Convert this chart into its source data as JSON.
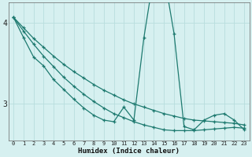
{
  "xlabel": "Humidex (Indice chaleur)",
  "bg_color": "#d6f0f0",
  "line_color": "#1e7a70",
  "grid_color": "#b8dede",
  "xlim": [
    -0.5,
    23.5
  ],
  "ylim": [
    2.55,
    4.25
  ],
  "yticks": [
    3,
    4
  ],
  "xticks": [
    0,
    1,
    2,
    3,
    4,
    5,
    6,
    7,
    8,
    9,
    10,
    11,
    12,
    13,
    14,
    15,
    16,
    17,
    18,
    19,
    20,
    21,
    22,
    23
  ],
  "series": [
    {
      "x": [
        0,
        1,
        2,
        3,
        4,
        5,
        6,
        7,
        8,
        9,
        10,
        11,
        12,
        13,
        14,
        15,
        16,
        17,
        18,
        19,
        20,
        21,
        22,
        23
      ],
      "y": [
        4.07,
        3.94,
        3.81,
        3.7,
        3.59,
        3.49,
        3.4,
        3.32,
        3.24,
        3.17,
        3.11,
        3.05,
        3.0,
        2.96,
        2.92,
        2.88,
        2.85,
        2.82,
        2.8,
        2.79,
        2.78,
        2.77,
        2.76,
        2.74
      ]
    },
    {
      "x": [
        0,
        1,
        2,
        3,
        4,
        5,
        6,
        7,
        8,
        9,
        10,
        11,
        12,
        13,
        14,
        15,
        16,
        17,
        18,
        19,
        20,
        21,
        22,
        23
      ],
      "y": [
        4.07,
        3.9,
        3.74,
        3.59,
        3.46,
        3.33,
        3.22,
        3.12,
        3.03,
        2.95,
        2.88,
        2.83,
        2.78,
        2.74,
        2.71,
        2.68,
        2.67,
        2.67,
        2.67,
        2.68,
        2.69,
        2.7,
        2.71,
        2.7
      ]
    },
    {
      "x": [
        0,
        1,
        2,
        3,
        4,
        5,
        6,
        7,
        8,
        9,
        10,
        11,
        12,
        13,
        14,
        15,
        16,
        17,
        18,
        19,
        20,
        21,
        22,
        23
      ],
      "y": [
        4.07,
        3.82,
        3.58,
        3.47,
        3.3,
        3.18,
        3.06,
        2.95,
        2.86,
        2.8,
        2.78,
        2.96,
        2.8,
        3.82,
        4.6,
        4.6,
        3.87,
        2.72,
        2.68,
        2.8,
        2.86,
        2.88,
        2.8,
        2.68
      ]
    }
  ]
}
